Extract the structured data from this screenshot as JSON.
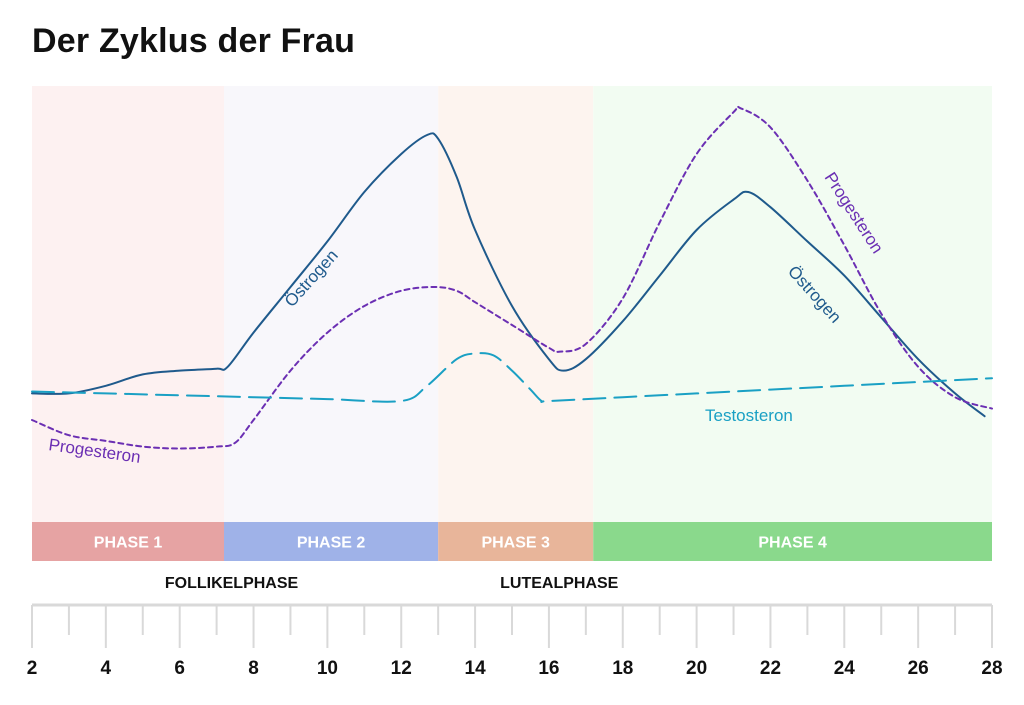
{
  "title": "Der Zyklus der Frau",
  "colors": {
    "oestrogen": "#1f5a8c",
    "progesteron": "#6b2fb3",
    "testosteron": "#1aa0c4",
    "axis": "#d9d9d9"
  },
  "phases": [
    {
      "label": "PHASE 1",
      "start": 2,
      "end": 7.2,
      "band": "#e6a3a3",
      "tint": "#fdf1f1"
    },
    {
      "label": "PHASE 2",
      "start": 7.2,
      "end": 13,
      "band": "#9fb2e8",
      "tint": "#f8f7fb"
    },
    {
      "label": "PHASE 3",
      "start": 13,
      "end": 17.2,
      "band": "#e8b59a",
      "tint": "#fdf4ef"
    },
    {
      "label": "PHASE 4",
      "start": 17.2,
      "end": 28,
      "band": "#8ad98c",
      "tint": "#f2fcf2"
    }
  ],
  "periods": [
    {
      "label": "FOLLIKELPHASE",
      "center": 8
    },
    {
      "label": "LUTEALPHASE",
      "center": 13.3
    }
  ],
  "curve_labels": {
    "oestrogen_1": "Östrogen",
    "oestrogen_2": "Östrogen",
    "progesteron_1": "Progesteron",
    "progesteron_2": "Progesteron",
    "testosteron": "Testosteron"
  },
  "chart_data": {
    "type": "line",
    "title": "Der Zyklus der Frau",
    "xlabel": "",
    "ylabel": "",
    "xlim": [
      2,
      28
    ],
    "ylim": [
      0,
      100
    ],
    "x_ticks": [
      2,
      4,
      6,
      8,
      10,
      12,
      14,
      16,
      18,
      20,
      22,
      24,
      26,
      28
    ],
    "series": [
      {
        "name": "Östrogen",
        "style": "solid",
        "x": [
          2,
          3,
          4,
          5,
          6,
          7,
          7.3,
          8,
          9,
          10,
          11,
          12,
          12.7,
          13,
          13.5,
          14,
          15,
          16,
          16.4,
          17,
          18,
          19,
          20,
          21,
          21.4,
          22,
          23,
          24,
          25,
          26,
          27,
          27.8
        ],
        "y": [
          27,
          27,
          29,
          32,
          33,
          33.5,
          34,
          43,
          55,
          67,
          80,
          90,
          95,
          94,
          84,
          70,
          50,
          36,
          33,
          36,
          46,
          58,
          70,
          78,
          80,
          76,
          67,
          58,
          47,
          36,
          27,
          21
        ]
      },
      {
        "name": "Progesteron",
        "style": "dashed",
        "x": [
          2,
          3,
          4,
          5,
          6,
          7,
          7.5,
          8,
          9,
          10,
          11,
          12,
          12.9,
          13.5,
          14,
          15,
          16,
          16.3,
          17,
          18,
          19,
          20,
          21,
          21.2,
          22,
          23,
          24,
          25,
          26,
          27,
          28
        ],
        "y": [
          20,
          16,
          14.5,
          13,
          12.5,
          13,
          14,
          20,
          33,
          43,
          50,
          54,
          55,
          54,
          51,
          45,
          39,
          38,
          40,
          52,
          72,
          90,
          101,
          102,
          97,
          83,
          66,
          48,
          34,
          26,
          23
        ]
      },
      {
        "name": "Testosteron",
        "style": "long-dashed",
        "x": [
          2,
          4,
          6,
          8,
          10,
          12,
          12.7,
          13.5,
          14,
          14.5,
          15,
          15.5,
          15.8,
          16,
          18,
          20,
          22,
          24,
          26,
          28
        ],
        "y": [
          27.5,
          27,
          26.5,
          26,
          25.5,
          25,
          29,
          36,
          37.5,
          37,
          33,
          28,
          25,
          25,
          26,
          27,
          28,
          29,
          30,
          31
        ]
      }
    ]
  }
}
